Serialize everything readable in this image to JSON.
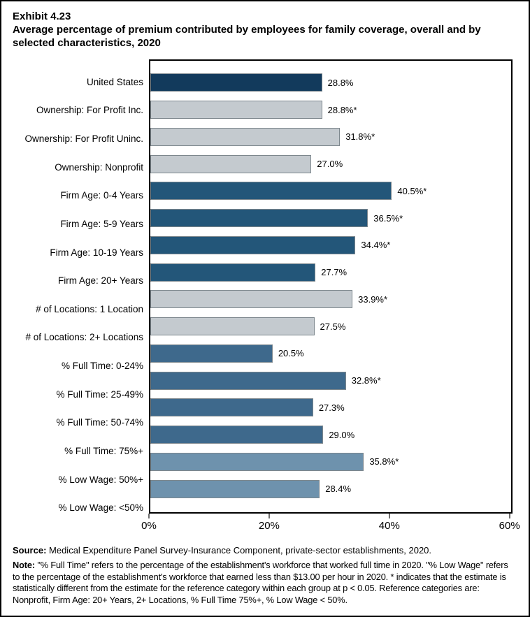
{
  "title": {
    "exhibit": "Exhibit 4.23",
    "text": "Average percentage of premium contributed by employees for family coverage, overall and by selected characteristics, 2020"
  },
  "chart_data": {
    "type": "bar",
    "orientation": "horizontal",
    "title": "Average percentage of premium contributed by employees for family coverage, overall and by selected characteristics, 2020",
    "xlabel": "",
    "ylabel": "",
    "xlim": [
      0,
      60.5
    ],
    "x_ticks": [
      "0%",
      "20%",
      "40%",
      "60%"
    ],
    "x_tick_values": [
      0,
      20,
      40,
      60
    ],
    "grid": false,
    "legend": false,
    "bars": [
      {
        "category": "United States",
        "value": 28.8,
        "display": "28.8%",
        "group": "united_states"
      },
      {
        "category": "Ownership: For Profit Inc.",
        "value": 28.8,
        "display": "28.8%*",
        "group": "ownership"
      },
      {
        "category": "Ownership: For Profit Uninc.",
        "value": 31.8,
        "display": "31.8%*",
        "group": "ownership"
      },
      {
        "category": "Ownership: Nonprofit",
        "value": 27.0,
        "display": "27.0%",
        "group": "ownership"
      },
      {
        "category": "Firm Age: 0-4 Years",
        "value": 40.5,
        "display": "40.5%*",
        "group": "firm_age"
      },
      {
        "category": "Firm Age: 5-9 Years",
        "value": 36.5,
        "display": "36.5%*",
        "group": "firm_age"
      },
      {
        "category": "Firm Age: 10-19 Years",
        "value": 34.4,
        "display": "34.4%*",
        "group": "firm_age"
      },
      {
        "category": "Firm Age: 20+ Years",
        "value": 27.7,
        "display": "27.7%",
        "group": "firm_age"
      },
      {
        "category": "# of Locations: 1 Location",
        "value": 33.9,
        "display": "33.9%*",
        "group": "locations"
      },
      {
        "category": "# of Locations: 2+ Locations",
        "value": 27.5,
        "display": "27.5%",
        "group": "locations"
      },
      {
        "category": "% Full Time: 0-24%",
        "value": 20.5,
        "display": "20.5%",
        "group": "full_time"
      },
      {
        "category": "% Full Time: 25-49%",
        "value": 32.8,
        "display": "32.8%*",
        "group": "full_time"
      },
      {
        "category": "% Full Time: 50-74%",
        "value": 27.3,
        "display": "27.3%",
        "group": "full_time"
      },
      {
        "category": "% Full Time: 75%+",
        "value": 29.0,
        "display": "29.0%",
        "group": "full_time"
      },
      {
        "category": "% Low Wage: 50%+",
        "value": 35.8,
        "display": "35.8%*",
        "group": "low_wage"
      },
      {
        "category": "% Low Wage: <50%",
        "value": 28.4,
        "display": "28.4%",
        "group": "low_wage"
      }
    ],
    "group_colors": {
      "united_states": "#123A5C",
      "ownership": "#C4CACF",
      "firm_age": "#235679",
      "locations": "#C4CACF",
      "full_time": "#3E698C",
      "low_wage": "#6E92AD"
    },
    "bar_border_color": "#7D878D",
    "tick_color": "#6E6E6E"
  },
  "footer": {
    "source_label": "Source:",
    "source_text": " Medical Expenditure Panel Survey-Insurance Component, private-sector establishments, 2020.",
    "note_label": "Note:",
    "note_text": " \"% Full Time\" refers to the percentage of the establishment's workforce that worked full time in 2020. \"% Low Wage\" refers to the percentage of the establishment's workforce that earned less than $13.00 per hour in 2020. * indicates that the estimate is statistically different from the estimate for the reference category within each group at p < 0.05.  Reference categories are: Nonprofit, Firm Age: 20+ Years, 2+ Locations, % Full Time 75%+, % Low Wage < 50%."
  }
}
